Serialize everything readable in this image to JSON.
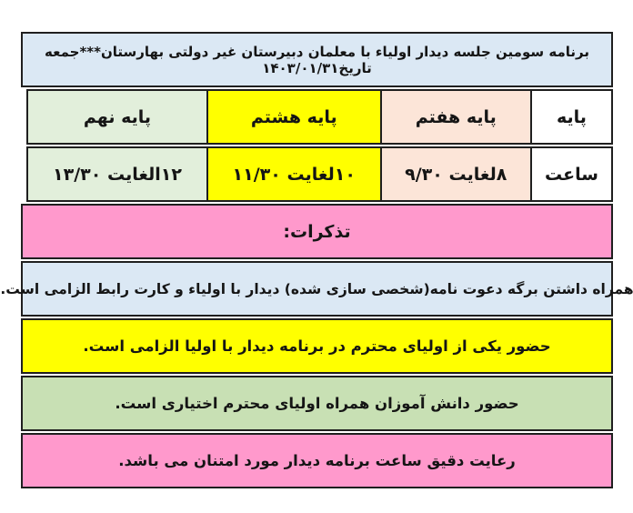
{
  "header": {
    "title": "برنامه سومین جلسه دیدار اولیاء با معلمان دبیرستان غیر دولتی بهارستان***جمعه تاریخ۱۴۰۳/۰۱/۳۱"
  },
  "grid": {
    "grade_label": "پایه",
    "grades": [
      {
        "text": "پایه هفتم"
      },
      {
        "text": "پایه هشتم"
      },
      {
        "text": "پایه نهم"
      }
    ],
    "time_label": "ساعت",
    "times": [
      {
        "text": "۸لغایت ۹/۳۰"
      },
      {
        "text": "۱۰لغایت ۱۱/۳۰"
      },
      {
        "text": "۱۲الغایت ۱۳/۳۰"
      }
    ]
  },
  "notes": {
    "heading": "تذکرات:",
    "items": [
      {
        "text": "همراه داشتن برگه دعوت نامه(شخصی سازی شده) دیدار با اولیاء و کارت رابط الزامی است."
      },
      {
        "text": "حضور یکی از اولیای محترم در برنامه دیدار با اولیا الزامی است."
      },
      {
        "text": "حضور دانش آموزان همراه اولیای محترم اختیاری است."
      },
      {
        "text": "رعایت دقیق ساعت برنامه دیدار مورد امتنان می باشد."
      }
    ]
  },
  "colors": {
    "title_bg": "#dbe8f4",
    "grade7_bg": "#fce5d8",
    "grade8_bg": "#ffff00",
    "grade9_bg": "#e2efdb",
    "label_bg": "#ffffff",
    "notes_heading_bg": "#ff99cc",
    "note_blue_bg": "#dbe8f4",
    "note_yellow_bg": "#ffff00",
    "note_green_bg": "#c8e0b4",
    "note_pink_bg": "#ff99cc",
    "border": "#1f1f1f",
    "text": "#151515"
  }
}
